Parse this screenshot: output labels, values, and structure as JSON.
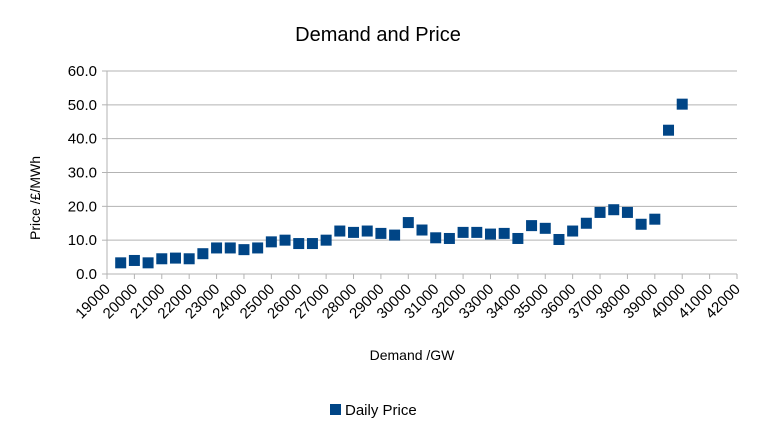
{
  "chart_data": {
    "type": "scatter",
    "title": "Demand and Price",
    "xlabel": "Demand /GW",
    "ylabel": "Price /£/MWh",
    "xlim": [
      19000,
      42000
    ],
    "ylim": [
      0,
      60
    ],
    "x_ticks": [
      "19000",
      "20000",
      "21000",
      "22000",
      "23000",
      "24000",
      "25000",
      "26000",
      "27000",
      "28000",
      "29000",
      "30000",
      "31000",
      "32000",
      "33000",
      "34000",
      "35000",
      "36000",
      "37000",
      "38000",
      "39000",
      "40000",
      "41000",
      "42000"
    ],
    "y_ticks": [
      "0.0",
      "10.0",
      "20.0",
      "30.0",
      "40.0",
      "50.0",
      "60.0"
    ],
    "grid": "horizontal",
    "legend": "bottom",
    "series": [
      {
        "name": "Daily Price",
        "color": "#004586",
        "points": [
          [
            19500,
            3.3
          ],
          [
            20000,
            4.0
          ],
          [
            20500,
            3.3
          ],
          [
            21000,
            4.5
          ],
          [
            21500,
            4.7
          ],
          [
            22000,
            4.5
          ],
          [
            22500,
            6.0
          ],
          [
            23000,
            7.7
          ],
          [
            23500,
            7.7
          ],
          [
            24000,
            7.2
          ],
          [
            24500,
            7.7
          ],
          [
            25000,
            9.5
          ],
          [
            25500,
            10.0
          ],
          [
            26000,
            9.0
          ],
          [
            26500,
            9.0
          ],
          [
            27000,
            10.0
          ],
          [
            27500,
            12.7
          ],
          [
            28000,
            12.3
          ],
          [
            28500,
            12.7
          ],
          [
            29000,
            12.0
          ],
          [
            29500,
            11.5
          ],
          [
            30000,
            15.2
          ],
          [
            30500,
            13.0
          ],
          [
            31000,
            10.7
          ],
          [
            31500,
            10.5
          ],
          [
            32000,
            12.3
          ],
          [
            32500,
            12.3
          ],
          [
            33000,
            11.8
          ],
          [
            33500,
            12.0
          ],
          [
            34000,
            10.5
          ],
          [
            34500,
            14.3
          ],
          [
            35000,
            13.5
          ],
          [
            35500,
            10.2
          ],
          [
            36000,
            12.7
          ],
          [
            36500,
            15.0
          ],
          [
            37000,
            18.2
          ],
          [
            37500,
            19.0
          ],
          [
            38000,
            18.2
          ],
          [
            38500,
            14.7
          ],
          [
            39000,
            16.2
          ],
          [
            39500,
            42.5
          ],
          [
            40000,
            50.2
          ]
        ]
      }
    ]
  }
}
